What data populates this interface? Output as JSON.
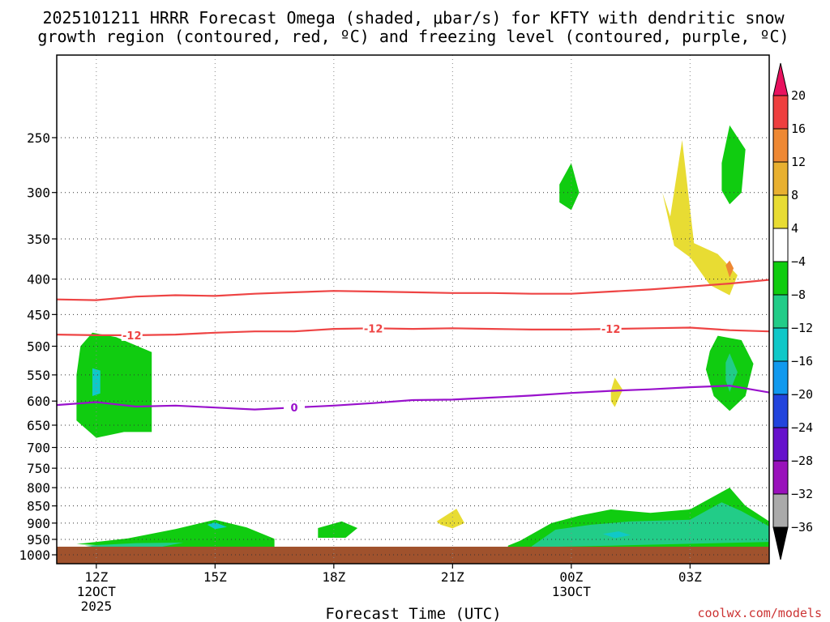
{
  "chart_data": {
    "type": "heatmap",
    "title_line1": "2025101211 HRRR Forecast Omega (shaded, μbar/s) for KFTY with dendritic snow",
    "title_line2": "growth region (contoured, red, ºC) and freezing level (contoured, purple, ºC)",
    "xlabel": "Forecast Time (UTC)",
    "credit": "coolwx.com/models",
    "x_ticks": [
      {
        "hour": 0,
        "label": "12Z",
        "sub1": "12OCT",
        "sub2": "2025"
      },
      {
        "hour": 3,
        "label": "15Z",
        "sub1": "",
        "sub2": ""
      },
      {
        "hour": 6,
        "label": "18Z",
        "sub1": "",
        "sub2": ""
      },
      {
        "hour": 9,
        "label": "21Z",
        "sub1": "",
        "sub2": ""
      },
      {
        "hour": 12,
        "label": "00Z",
        "sub1": "13OCT",
        "sub2": ""
      },
      {
        "hour": 15,
        "label": "03Z",
        "sub1": "",
        "sub2": ""
      }
    ],
    "x_range_hours": [
      -1,
      17
    ],
    "y_range_hpa": [
      1030,
      190
    ],
    "y_ticks": [
      250,
      300,
      350,
      400,
      450,
      500,
      550,
      600,
      650,
      700,
      750,
      800,
      850,
      900,
      950,
      1000
    ],
    "grid": true,
    "colorbar": {
      "labels": [
        "20",
        "16",
        "12",
        "8",
        "4",
        "−4",
        "−8",
        "−12",
        "−16",
        "−20",
        "−24",
        "−28",
        "−32",
        "−36"
      ],
      "colors": [
        "#e8115e",
        "#ee3f3f",
        "#ee8833",
        "#e8b030",
        "#e8dc33",
        "#ffffff",
        "#10cc10",
        "#22cc88",
        "#10c8c8",
        "#1199ee",
        "#2244dd",
        "#6611cc",
        "#9911bb",
        "#aaaaaa",
        "#000000"
      ]
    },
    "contours": {
      "dgz_top": {
        "color": "#ee4444",
        "label": "",
        "points": [
          [
            -1,
            428
          ],
          [
            0,
            429
          ],
          [
            1,
            424
          ],
          [
            2,
            422
          ],
          [
            3,
            423
          ],
          [
            4,
            420
          ],
          [
            5,
            418
          ],
          [
            6,
            416
          ],
          [
            7,
            417
          ],
          [
            8,
            418
          ],
          [
            9,
            419
          ],
          [
            10,
            419
          ],
          [
            11,
            420
          ],
          [
            12,
            420
          ],
          [
            13,
            417
          ],
          [
            14,
            414
          ],
          [
            15,
            410
          ],
          [
            16,
            406
          ],
          [
            17,
            401
          ]
        ]
      },
      "dgz_bottom": {
        "color": "#ee4444",
        "label": "-12",
        "label_hours": [
          0.9,
          7,
          13
        ],
        "points": [
          [
            -1,
            481
          ],
          [
            0,
            482
          ],
          [
            1,
            482
          ],
          [
            2,
            481
          ],
          [
            3,
            478
          ],
          [
            4,
            476
          ],
          [
            5,
            476
          ],
          [
            6,
            472
          ],
          [
            7,
            471
          ],
          [
            8,
            472
          ],
          [
            9,
            471
          ],
          [
            10,
            472
          ],
          [
            11,
            473
          ],
          [
            12,
            473
          ],
          [
            13,
            472
          ],
          [
            14,
            471
          ],
          [
            15,
            470
          ],
          [
            16,
            474
          ],
          [
            17,
            476
          ]
        ]
      },
      "freezing_level": {
        "color": "#9911cc",
        "label": "0",
        "label_hours": [
          5
        ],
        "points": [
          [
            -1,
            608
          ],
          [
            0,
            602
          ],
          [
            1,
            611
          ],
          [
            2,
            609
          ],
          [
            3,
            613
          ],
          [
            4,
            617
          ],
          [
            5,
            613
          ],
          [
            6,
            609
          ],
          [
            7,
            604
          ],
          [
            8,
            598
          ],
          [
            9,
            597
          ],
          [
            10,
            593
          ],
          [
            11,
            589
          ],
          [
            12,
            584
          ],
          [
            13,
            580
          ],
          [
            14,
            577
          ],
          [
            15,
            573
          ],
          [
            16,
            570
          ],
          [
            17,
            583
          ]
        ]
      }
    },
    "omega_features": [
      {
        "category": "-4",
        "color": "#10cc10",
        "points": [
          [
            -0.4,
            500
          ],
          [
            -0.1,
            478
          ],
          [
            0.5,
            485
          ],
          [
            1.4,
            510
          ],
          [
            1.4,
            665
          ],
          [
            0.7,
            665
          ],
          [
            0,
            678
          ],
          [
            -0.5,
            640
          ],
          [
            -0.5,
            550
          ]
        ]
      },
      {
        "category": "-8",
        "color": "#10c8c8",
        "points": [
          [
            -0.1,
            538
          ],
          [
            0.1,
            542
          ],
          [
            0.1,
            585
          ],
          [
            -0.1,
            590
          ]
        ]
      },
      {
        "category": "-4",
        "color": "#10cc10",
        "points": [
          [
            11.7,
            292
          ],
          [
            12,
            272
          ],
          [
            12.2,
            300
          ],
          [
            12,
            318
          ],
          [
            11.7,
            310
          ]
        ]
      },
      {
        "category": "-4",
        "color": "#10cc10",
        "points": [
          [
            15.8,
            272
          ],
          [
            16,
            240
          ],
          [
            16.4,
            260
          ],
          [
            16.3,
            300
          ],
          [
            16,
            312
          ],
          [
            15.8,
            298
          ]
        ]
      },
      {
        "category": "4",
        "color": "#e8dc33",
        "points": [
          [
            14.5,
            325
          ],
          [
            14.8,
            252
          ],
          [
            15.1,
            355
          ],
          [
            15.7,
            368
          ],
          [
            16.2,
            395
          ],
          [
            16,
            422
          ],
          [
            15.5,
            408
          ],
          [
            15.0,
            372
          ],
          [
            14.6,
            358
          ],
          [
            14.3,
            300
          ]
        ]
      },
      {
        "category": "8",
        "color": "#ee8833",
        "points": [
          [
            15.9,
            382
          ],
          [
            16.0,
            376
          ],
          [
            16.1,
            386
          ],
          [
            16.0,
            398
          ]
        ]
      },
      {
        "category": "-4",
        "color": "#10cc10",
        "points": [
          [
            15.5,
            508
          ],
          [
            15.7,
            483
          ],
          [
            16.3,
            490
          ],
          [
            16.6,
            530
          ],
          [
            16.4,
            590
          ],
          [
            16,
            620
          ],
          [
            15.6,
            590
          ],
          [
            15.4,
            540
          ]
        ]
      },
      {
        "category": "-8",
        "color": "#22cc88",
        "points": [
          [
            15.9,
            528
          ],
          [
            16.0,
            512
          ],
          [
            16.2,
            545
          ],
          [
            16.0,
            582
          ],
          [
            15.9,
            560
          ]
        ]
      },
      {
        "category": "4",
        "color": "#e8dc33",
        "points": [
          [
            13.0,
            580
          ],
          [
            13.1,
            555
          ],
          [
            13.3,
            578
          ],
          [
            13.1,
            612
          ],
          [
            13.0,
            600
          ]
        ]
      },
      {
        "category": "4",
        "color": "#e8dc33",
        "points": [
          [
            8.6,
            895
          ],
          [
            9.1,
            858
          ],
          [
            9.3,
            900
          ],
          [
            9.0,
            916
          ],
          [
            8.7,
            905
          ]
        ]
      },
      {
        "category": "-4",
        "color": "#10cc10",
        "points": [
          [
            -0.5,
            965
          ],
          [
            0.8,
            947
          ],
          [
            2,
            918
          ],
          [
            3,
            890
          ],
          [
            3.8,
            913
          ],
          [
            4.5,
            948
          ],
          [
            4.5,
            975
          ],
          [
            1,
            975
          ]
        ]
      },
      {
        "category": "-8",
        "color": "#22cc88",
        "points": [
          [
            -0.3,
            970
          ],
          [
            1,
            962
          ],
          [
            2.2,
            960
          ],
          [
            1.6,
            975
          ],
          [
            0,
            975
          ]
        ]
      },
      {
        "category": "-4",
        "color": "#10cc10",
        "points": [
          [
            5.6,
            915
          ],
          [
            6.2,
            895
          ],
          [
            6.6,
            915
          ],
          [
            6.3,
            945
          ],
          [
            5.6,
            945
          ]
        ]
      },
      {
        "category": "-4",
        "color": "#10cc10",
        "points": [
          [
            10.4,
            970
          ],
          [
            10.7,
            955
          ],
          [
            11.5,
            900
          ],
          [
            12.2,
            878
          ],
          [
            13,
            860
          ],
          [
            14,
            870
          ],
          [
            15,
            860
          ],
          [
            16,
            800
          ],
          [
            16.4,
            850
          ],
          [
            17,
            895
          ],
          [
            17,
            975
          ],
          [
            10.4,
            975
          ]
        ]
      },
      {
        "category": "-8",
        "color": "#22cc88",
        "points": [
          [
            11,
            972
          ],
          [
            11.6,
            920
          ],
          [
            12.5,
            905
          ],
          [
            13.5,
            895
          ],
          [
            15,
            890
          ],
          [
            15.8,
            840
          ],
          [
            16.3,
            865
          ],
          [
            17,
            910
          ],
          [
            17,
            958
          ],
          [
            13,
            970
          ],
          [
            11,
            975
          ]
        ]
      },
      {
        "category": "-12",
        "color": "#10c8c8",
        "points": [
          [
            12.8,
            933
          ],
          [
            13.2,
            925
          ],
          [
            13.5,
            937
          ],
          [
            13.1,
            946
          ]
        ]
      },
      {
        "category": "-12",
        "color": "#10c8c8",
        "points": [
          [
            2.8,
            905
          ],
          [
            3.0,
            898
          ],
          [
            3.3,
            912
          ],
          [
            3.0,
            918
          ]
        ]
      }
    ],
    "ground_color": "#a0522d"
  }
}
